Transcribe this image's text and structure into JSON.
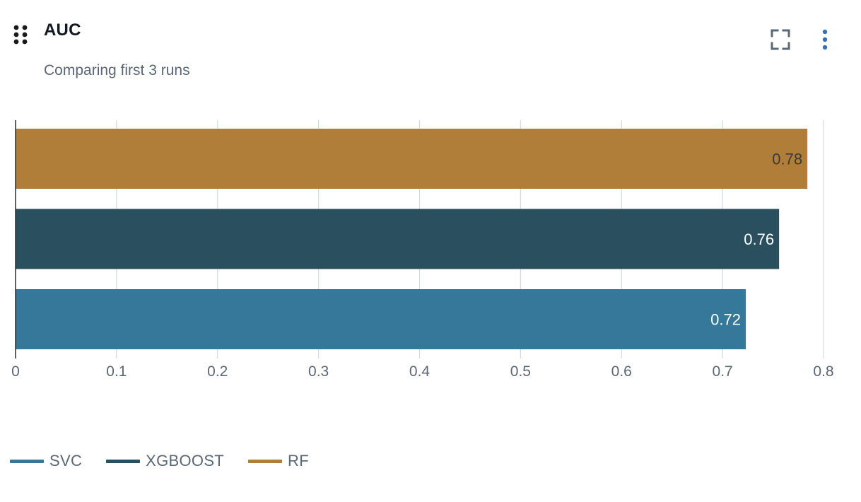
{
  "header": {
    "title": "AUC",
    "subtitle": "Comparing first 3 runs"
  },
  "icons": {
    "drag": "drag-handle-icon",
    "expand": "fullscreen-icon",
    "menu": "more-vertical-icon"
  },
  "colors": {
    "SVC": "#367899",
    "XGBOOST": "#2a5060",
    "RF": "#b07e38",
    "gridline": "#d5d9de",
    "axis_text": "#5b6775",
    "menu_dots": "#3a6fb0"
  },
  "legend": [
    {
      "label": "SVC",
      "color": "#367899"
    },
    {
      "label": "XGBOOST",
      "color": "#2a5060"
    },
    {
      "label": "RF",
      "color": "#b07e38"
    }
  ],
  "chart_data": {
    "type": "bar",
    "orientation": "horizontal",
    "categories": [
      "RF",
      "XGBOOST",
      "SVC"
    ],
    "series": [
      {
        "name": "RF",
        "value": 0.784,
        "label": "0.78",
        "color": "#b07e38",
        "label_color": "#3a3a3a"
      },
      {
        "name": "XGBOOST",
        "value": 0.756,
        "label": "0.76",
        "color": "#2a5060",
        "label_color": "#ffffff"
      },
      {
        "name": "SVC",
        "value": 0.723,
        "label": "0.72",
        "color": "#367899",
        "label_color": "#ffffff"
      }
    ],
    "xlim": [
      0,
      0.8
    ],
    "xticks": [
      0,
      0.1,
      0.2,
      0.3,
      0.4,
      0.5,
      0.6,
      0.7,
      0.8
    ],
    "xtick_labels": [
      "0",
      "0.1",
      "0.2",
      "0.3",
      "0.4",
      "0.5",
      "0.6",
      "0.7",
      "0.8"
    ],
    "grid": true,
    "legend_position": "bottom-left"
  }
}
